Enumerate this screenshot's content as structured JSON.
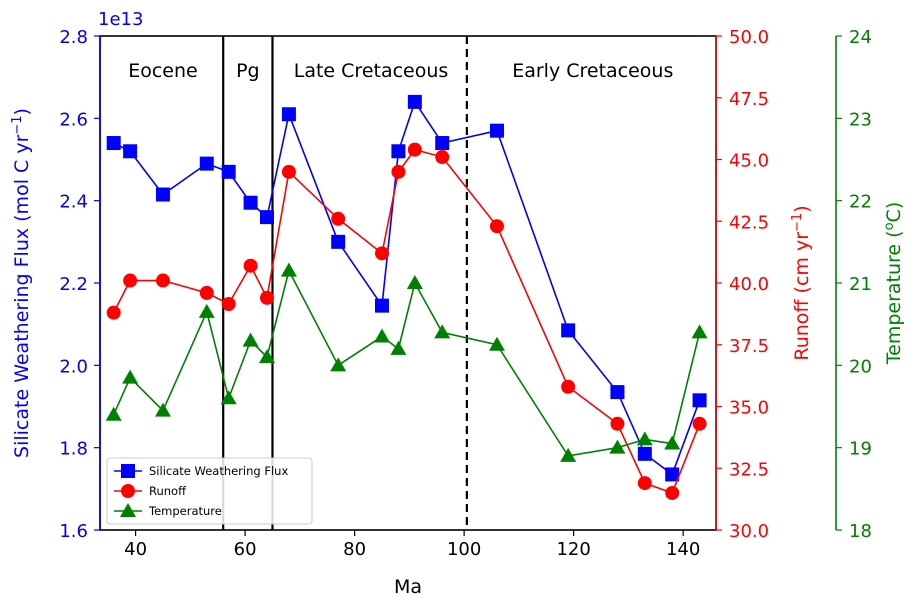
{
  "chart_data": {
    "type": "line",
    "xlabel": "Ma",
    "xlim": [
      33.5,
      146
    ],
    "xticks": [
      40,
      60,
      80,
      100,
      120,
      140
    ],
    "left_axis": {
      "label": "Silicate Weathering Flux (mol C yr$^{-1}$)",
      "label_main": "Silicate Weathering Flux (mol C yr",
      "label_sup": "−1",
      "label_close": ")",
      "offset_text": "1e13",
      "color": "#0000ff",
      "ylim": [
        1.6,
        2.8
      ],
      "ticks": [
        1.6,
        1.8,
        2.0,
        2.2,
        2.4,
        2.6,
        2.8
      ],
      "tick_labels": [
        "1.6",
        "1.8",
        "2.0",
        "2.2",
        "2.4",
        "2.6",
        "2.8"
      ]
    },
    "right_axis": {
      "label": "Runoff (cm yr$^{-1}$)",
      "label_main": "Runoff (cm yr",
      "label_sup": "−1",
      "label_close": ")",
      "color": "#ff0000",
      "ylim": [
        30.0,
        50.0
      ],
      "ticks": [
        30.0,
        32.5,
        35.0,
        37.5,
        40.0,
        42.5,
        45.0,
        47.5,
        50.0
      ],
      "tick_labels": [
        "30.0",
        "32.5",
        "35.0",
        "37.5",
        "40.0",
        "42.5",
        "45.0",
        "47.5",
        "50.0"
      ]
    },
    "far_right_axis": {
      "label": "Temperature ($^{o}$C)",
      "label_main": "Temperature (",
      "label_sup": "o",
      "label_close": "C)",
      "color": "#008000",
      "ylim": [
        18,
        24
      ],
      "ticks": [
        18,
        19,
        20,
        21,
        22,
        23,
        24
      ],
      "tick_labels": [
        "18",
        "19",
        "20",
        "21",
        "22",
        "23",
        "24"
      ]
    },
    "series": [
      {
        "name": "Silicate Weathering Flux",
        "axis": "left_axis",
        "color": "#0000ff",
        "marker": "square",
        "x": [
          36,
          39,
          45,
          53,
          57,
          61,
          64,
          68,
          77,
          85,
          88,
          91,
          96,
          106,
          119,
          128,
          133,
          138,
          143
        ],
        "y": [
          2.54,
          2.52,
          2.415,
          2.49,
          2.47,
          2.395,
          2.36,
          2.61,
          2.3,
          2.145,
          2.52,
          2.64,
          2.54,
          2.57,
          2.085,
          1.935,
          1.785,
          1.735,
          1.915
        ]
      },
      {
        "name": "Runoff",
        "axis": "right_axis",
        "color": "#ff0000",
        "marker": "circle",
        "x": [
          36,
          39,
          45,
          53,
          57,
          61,
          64,
          68,
          77,
          85,
          88,
          91,
          96,
          106,
          119,
          128,
          133,
          138,
          143
        ],
        "y": [
          38.8,
          40.1,
          40.1,
          39.6,
          39.15,
          40.7,
          39.4,
          44.5,
          42.6,
          41.2,
          44.5,
          45.4,
          45.1,
          42.3,
          35.8,
          34.3,
          31.9,
          31.5,
          34.3
        ]
      },
      {
        "name": "Temperature",
        "axis": "far_right_axis",
        "color": "#008000",
        "marker": "triangle",
        "x": [
          36,
          39,
          45,
          53,
          57,
          61,
          64,
          68,
          77,
          85,
          88,
          91,
          96,
          106,
          119,
          128,
          133,
          138,
          143
        ],
        "y": [
          19.4,
          19.85,
          19.45,
          20.65,
          19.6,
          20.3,
          20.1,
          21.15,
          20.0,
          20.35,
          20.2,
          21.0,
          20.4,
          20.25,
          18.9,
          19.0,
          19.1,
          19.05,
          20.4
        ]
      }
    ],
    "vlines": [
      {
        "x": 56,
        "style": "solid"
      },
      {
        "x": 65,
        "style": "solid"
      },
      {
        "x": 100.5,
        "style": "dashed"
      }
    ],
    "annotations": [
      {
        "text": "Eocene",
        "x": 45
      },
      {
        "text": "Pg",
        "x": 60.5
      },
      {
        "text": "Late Cretaceous",
        "x": 83
      },
      {
        "text": "Early Cretaceous",
        "x": 123.5
      }
    ],
    "legend": {
      "placement": "lower-left",
      "entries": [
        "Silicate Weathering Flux",
        "Runoff",
        "Temperature"
      ]
    },
    "grid": false
  }
}
